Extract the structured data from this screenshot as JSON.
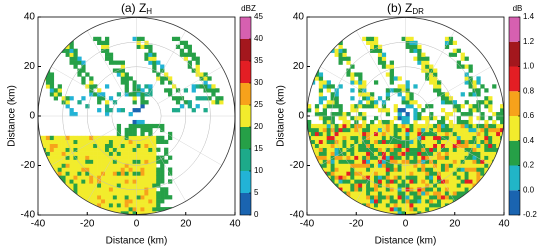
{
  "chart_data": [
    {
      "type": "radar",
      "title": "(a) Z",
      "title_subscript": "H",
      "xlabel": "Distance (km)",
      "ylabel": "Distance (km)",
      "xlim": [
        -40,
        40
      ],
      "ylim": [
        -40,
        40
      ],
      "xticks": [
        -40,
        -20,
        0,
        20,
        40
      ],
      "yticks": [
        -40,
        -20,
        0,
        20,
        40
      ],
      "colorbar_label": "dBZ",
      "colorbar_ticks": [
        0,
        5,
        10,
        15,
        20,
        25,
        30,
        35,
        40,
        45
      ],
      "colors": [
        "#1a64b0",
        "#22b3d6",
        "#1daa8a",
        "#26a047",
        "#f2ec2c",
        "#f7a21b",
        "#e31e24",
        "#a3171d",
        "#d660b0"
      ]
    },
    {
      "type": "radar",
      "title": "(b) Z",
      "title_subscript": "DR",
      "xlabel": "Distance (km)",
      "ylabel": "Distance (km)",
      "xlim": [
        -40,
        40
      ],
      "ylim": [
        -40,
        40
      ],
      "xticks": [
        -40,
        -20,
        0,
        20,
        40
      ],
      "yticks": [
        -40,
        -20,
        0,
        20,
        40
      ],
      "colorbar_label": "dB",
      "colorbar_ticks": [
        -0.2,
        {
          "value": 0,
          "label": "0.0"
        },
        0.2,
        0.4,
        0.6,
        0.8,
        {
          "value": 1,
          "label": "1.0"
        },
        1.2,
        1.4
      ],
      "colors": [
        "#1a64b0",
        "#21b5c7",
        "#26a047",
        "#f2ec2c",
        "#f7a21b",
        "#e31e24",
        "#a3171d",
        "#d660b0"
      ]
    }
  ]
}
